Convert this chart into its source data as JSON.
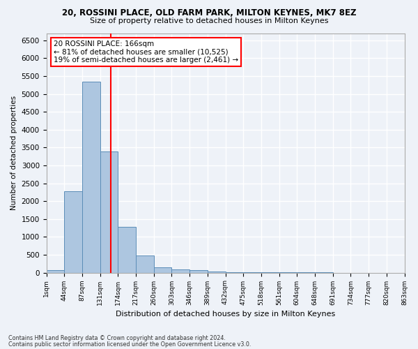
{
  "title1": "20, ROSSINI PLACE, OLD FARM PARK, MILTON KEYNES, MK7 8EZ",
  "title2": "Size of property relative to detached houses in Milton Keynes",
  "xlabel": "Distribution of detached houses by size in Milton Keynes",
  "ylabel": "Number of detached properties",
  "footer1": "Contains HM Land Registry data © Crown copyright and database right 2024.",
  "footer2": "Contains public sector information licensed under the Open Government Licence v3.0.",
  "annotation_line1": "20 ROSSINI PLACE: 166sqm",
  "annotation_line2": "← 81% of detached houses are smaller (10,525)",
  "annotation_line3": "19% of semi-detached houses are larger (2,461) →",
  "property_size_bin": 3.6,
  "bar_color": "#adc6e0",
  "bar_edge_color": "#5b8db8",
  "vline_color": "red",
  "background_color": "#eef2f8",
  "grid_color": "white",
  "n_bins": 20,
  "bin_labels": [
    "1sqm",
    "44sqm",
    "87sqm",
    "131sqm",
    "174sqm",
    "217sqm",
    "260sqm",
    "303sqm",
    "346sqm",
    "389sqm",
    "432sqm",
    "475sqm",
    "518sqm",
    "561sqm",
    "604sqm",
    "648sqm",
    "691sqm",
    "734sqm",
    "777sqm",
    "820sqm",
    "863sqm"
  ],
  "counts": [
    75,
    2280,
    5350,
    3380,
    1290,
    475,
    155,
    90,
    60,
    40,
    20,
    10,
    5,
    5,
    3,
    2,
    1,
    1,
    1,
    1
  ],
  "ylim": [
    0,
    6700
  ],
  "yticks": [
    0,
    500,
    1000,
    1500,
    2000,
    2500,
    3000,
    3500,
    4000,
    4500,
    5000,
    5500,
    6000,
    6500
  ]
}
